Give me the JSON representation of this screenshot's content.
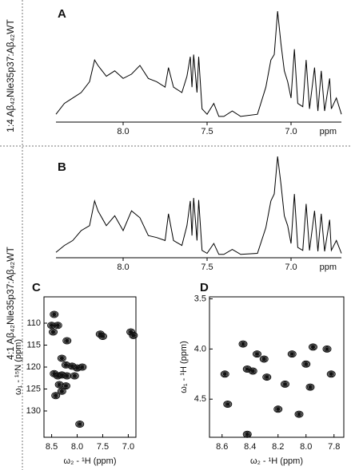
{
  "row_labels": [
    "1:4 Aβ₄₂Nle35p37:Aβ₄₂WT",
    "4:1 Aβ₄₂Nle35p37:Aβ₄₂WT"
  ],
  "chart_data": [
    {
      "type": "line",
      "title": "A",
      "x_label": "ppm",
      "color": "#000000",
      "x": [
        8.4,
        8.35,
        8.3,
        8.25,
        8.2,
        8.17,
        8.15,
        8.1,
        8.05,
        8.0,
        7.95,
        7.9,
        7.85,
        7.8,
        7.75,
        7.73,
        7.7,
        7.65,
        7.62,
        7.6,
        7.59,
        7.58,
        7.56,
        7.55,
        7.53,
        7.5,
        7.46,
        7.43,
        7.4,
        7.35,
        7.3,
        7.2,
        7.15,
        7.12,
        7.1,
        7.08,
        7.06,
        7.04,
        7.02,
        7.0,
        6.98,
        6.96,
        6.93,
        6.91,
        6.89,
        6.86,
        6.84,
        6.82,
        6.8,
        6.77,
        6.76,
        6.73,
        6.7
      ],
      "values": [
        5,
        15,
        20,
        25,
        35,
        55,
        50,
        40,
        45,
        38,
        42,
        50,
        38,
        35,
        30,
        48,
        30,
        25,
        40,
        58,
        30,
        60,
        25,
        58,
        10,
        5,
        15,
        3,
        3,
        8,
        3,
        5,
        30,
        55,
        60,
        100,
        70,
        45,
        35,
        20,
        65,
        15,
        12,
        55,
        10,
        48,
        8,
        45,
        8,
        38,
        10,
        20,
        5
      ],
      "xlim": [
        8.4,
        6.7
      ],
      "ylim": [
        0,
        100
      ],
      "xticks": [
        {
          "value": 8,
          "label": "8.0"
        },
        7.5,
        {
          "value": 7,
          "label": "7.0"
        }
      ]
    },
    {
      "type": "line",
      "title": "B",
      "x_label": "ppm",
      "color": "#000000",
      "x": [
        8.4,
        8.35,
        8.3,
        8.25,
        8.2,
        8.17,
        8.15,
        8.1,
        8.05,
        8.0,
        7.95,
        7.9,
        7.85,
        7.8,
        7.75,
        7.73,
        7.7,
        7.65,
        7.62,
        7.6,
        7.59,
        7.58,
        7.56,
        7.55,
        7.53,
        7.5,
        7.46,
        7.43,
        7.4,
        7.35,
        7.3,
        7.2,
        7.15,
        7.12,
        7.1,
        7.08,
        7.06,
        7.04,
        7.02,
        7.0,
        6.98,
        6.96,
        6.93,
        6.91,
        6.89,
        6.86,
        6.84,
        6.82,
        6.8,
        6.77,
        6.76,
        6.73,
        6.7
      ],
      "values": [
        3,
        10,
        15,
        25,
        30,
        55,
        45,
        30,
        40,
        25,
        45,
        38,
        20,
        18,
        15,
        42,
        15,
        10,
        30,
        55,
        20,
        58,
        15,
        56,
        5,
        2,
        12,
        1,
        1,
        6,
        1,
        2,
        28,
        55,
        62,
        100,
        72,
        40,
        30,
        12,
        62,
        8,
        5,
        52,
        5,
        45,
        4,
        42,
        4,
        36,
        5,
        15,
        2
      ],
      "xlim": [
        8.4,
        6.7
      ],
      "ylim": [
        0,
        100
      ],
      "xticks": [
        {
          "value": 8,
          "label": "8.0"
        },
        7.5,
        {
          "value": 7,
          "label": "7.0"
        }
      ]
    },
    {
      "type": "scatter",
      "title": "C",
      "x_label": "ω₂ - ¹H (ppm)",
      "y_label": "ω₁ - ¹⁵N (ppm)",
      "color": "#111111",
      "x": [
        8.45,
        8.38,
        8.5,
        8.47,
        7.55,
        7.5,
        6.95,
        6.9,
        8.2,
        8.3,
        8.22,
        8.1,
        8.0,
        7.9,
        8.45,
        8.38,
        8.3,
        8.2,
        8.05,
        8.35,
        8.22,
        8.3,
        8.42,
        7.95
      ],
      "values": [
        108,
        110.5,
        110.5,
        112,
        112.5,
        113,
        112,
        112.8,
        114,
        118,
        119.5,
        119.8,
        120.2,
        120,
        121.5,
        122,
        121.8,
        122,
        122,
        124,
        124.3,
        125.5,
        126.5,
        133
      ],
      "xlim": [
        8.65,
        6.85
      ],
      "ylim": [
        136,
        104
      ],
      "xticks": [
        8.5,
        {
          "value": 8,
          "label": "8.0"
        },
        7.5,
        {
          "value": 7,
          "label": "7.0"
        }
      ],
      "yticks": [
        110,
        115,
        120,
        125,
        130
      ]
    },
    {
      "type": "scatter",
      "title": "D",
      "x_label": "ω₂ - ¹H (ppm)",
      "y_label": "ω₁ - ¹H (ppm)",
      "color": "#111111",
      "x": [
        8.58,
        8.56,
        8.45,
        8.42,
        8.38,
        8.35,
        8.3,
        8.28,
        8.15,
        8.1,
        8.0,
        7.97,
        7.95,
        7.85,
        7.82,
        8.2,
        8.05,
        8.42
      ],
      "values": [
        4.25,
        4.55,
        3.95,
        4.2,
        4.22,
        4.05,
        4.1,
        4.28,
        4.35,
        4.05,
        4.15,
        4.38,
        3.98,
        4.0,
        4.25,
        4.6,
        4.65,
        4.85
      ],
      "xlim": [
        8.69,
        7.73
      ],
      "ylim": [
        4.88,
        3.48
      ],
      "xticks": [
        8.6,
        8.4,
        8.2,
        {
          "value": 8,
          "label": "8.0"
        },
        7.8
      ],
      "yticks": [
        3.5,
        {
          "value": 4,
          "label": "4.0"
        },
        4.5
      ]
    }
  ]
}
